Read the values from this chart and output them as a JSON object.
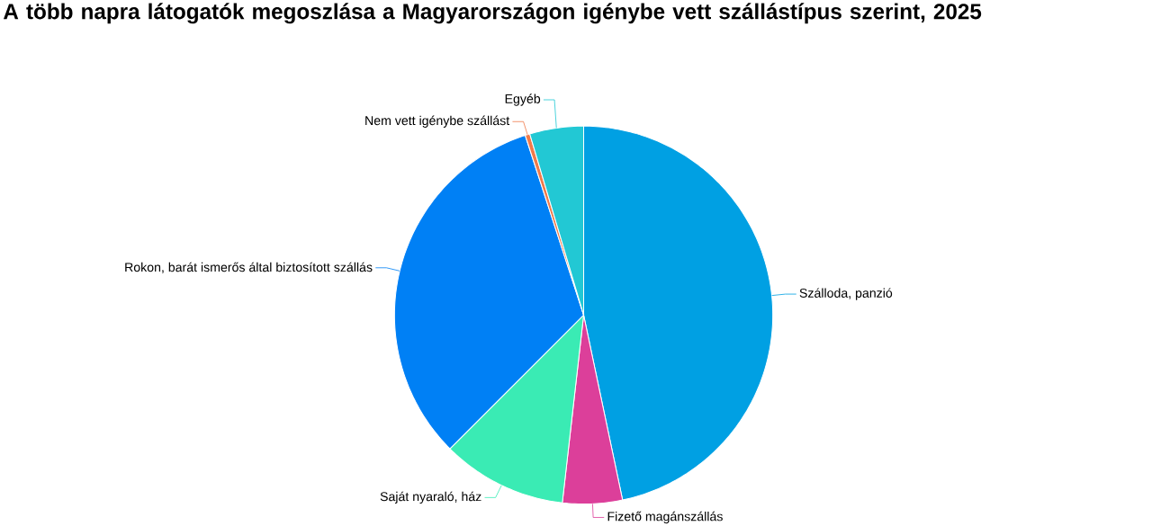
{
  "chart_data": {
    "type": "pie",
    "title": "A több napra látogatók megoszlása a Magyarországon igénybe vett szállástípus szerint, 2025",
    "categories": [
      "Szálloda, panzió",
      "Fizető magánszállás",
      "Saját nyaraló, ház",
      "Rokon, barát ismerős által biztosított szállás",
      "Nem vett igénybe szállást",
      "Egyéb"
    ],
    "values": [
      46.7,
      5.1,
      10.7,
      32.5,
      0.4,
      4.6
    ],
    "colors": [
      "#00a0e3",
      "#dc3f9a",
      "#3aebb4",
      "#0080f5",
      "#f07a4a",
      "#22c8d4"
    ]
  }
}
